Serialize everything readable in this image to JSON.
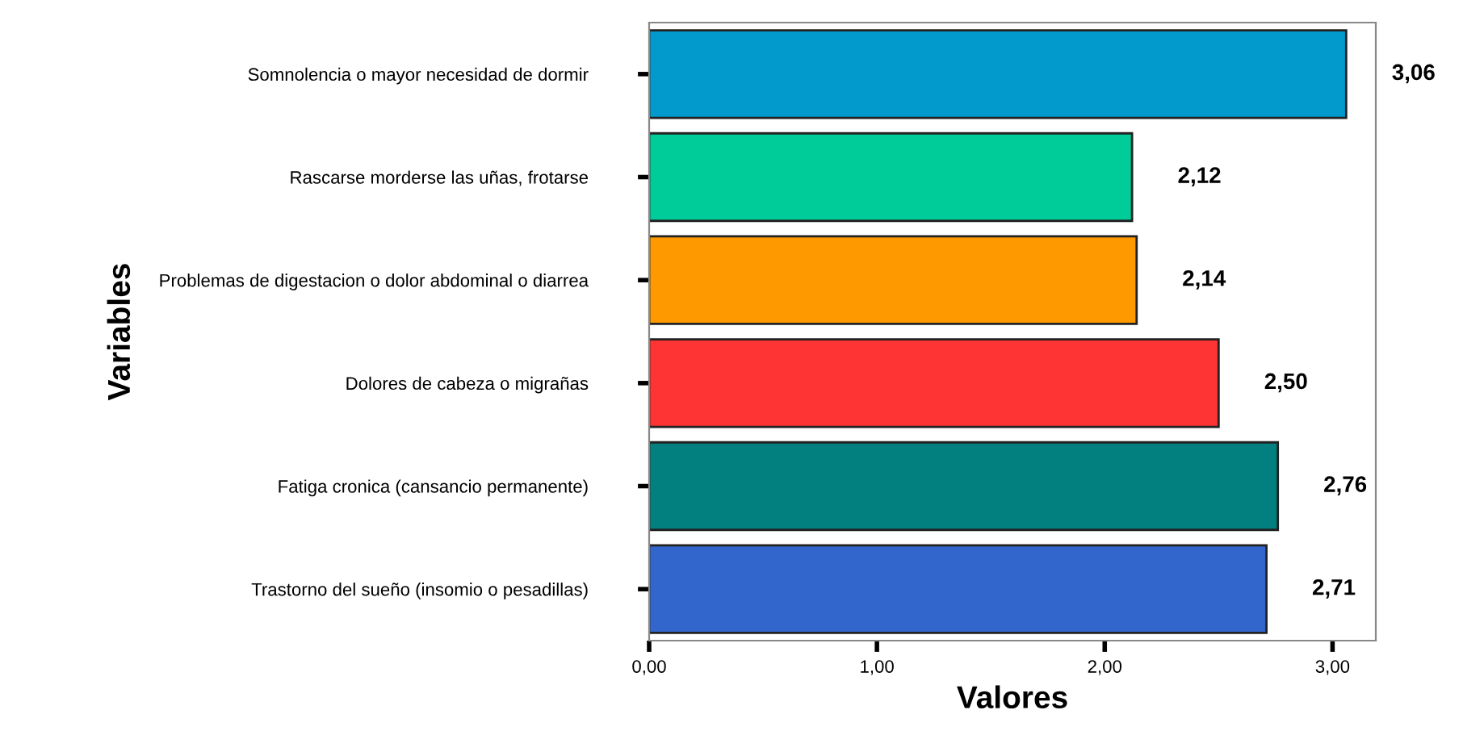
{
  "chart_data": {
    "type": "bar",
    "orientation": "horizontal",
    "xlabel": "Valores",
    "ylabel": "Variables",
    "categories": [
      "Somnolencia o mayor necesidad de dormir",
      "Rascarse morderse las uñas, frotarse",
      "Problemas de digestacion o dolor abdominal o diarrea",
      "Dolores de cabeza o migrañas",
      "Fatiga cronica (cansancio permanente)",
      "Trastorno del sueño (insomio o pesadillas)"
    ],
    "values": [
      3.06,
      2.12,
      2.14,
      2.5,
      2.76,
      2.71
    ],
    "colors": [
      "#029acc",
      "#00cc99",
      "#fe9900",
      "#fe3333",
      "#027f7f",
      "#3366cc"
    ],
    "value_labels": [
      "3,06",
      "2,12",
      "2,14",
      "2,50",
      "2,76",
      "2,71"
    ],
    "xlim": [
      0,
      3.19
    ],
    "xticks": [
      {
        "value": 0,
        "label": "0,00"
      },
      {
        "value": 1,
        "label": "1,00"
      },
      {
        "value": 2,
        "label": "2,00"
      },
      {
        "value": 3,
        "label": "3,00"
      }
    ],
    "grid": false,
    "legend": false
  }
}
